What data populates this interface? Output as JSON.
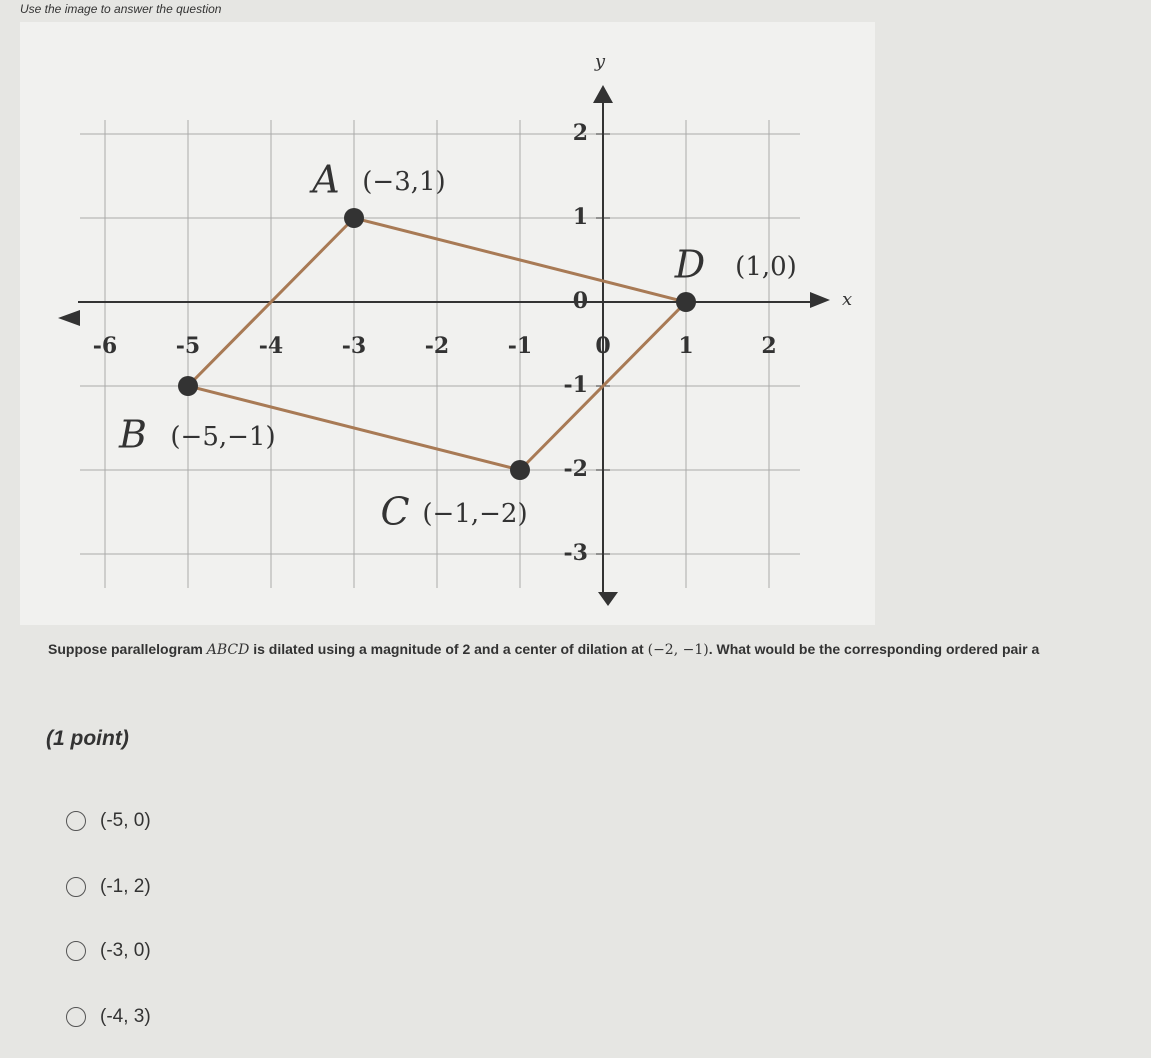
{
  "header": {
    "instruction": "Use the image to answer the question"
  },
  "figure": {
    "x_label": "x",
    "y_label": "y",
    "xticks": [
      -6,
      -5,
      -4,
      -3,
      -2,
      -1,
      0,
      1,
      2
    ],
    "yticks": [
      -3,
      -2,
      -1,
      0,
      1,
      2
    ],
    "points": [
      {
        "name": "A",
        "label": "(−3,1)",
        "x": -3,
        "y": 1
      },
      {
        "name": "B",
        "label": "(−5,−1)",
        "x": -5,
        "y": -1
      },
      {
        "name": "C",
        "label": "(−1,−2)",
        "x": -1,
        "y": -2
      },
      {
        "name": "D",
        "label": "(1,0)",
        "x": 1,
        "y": 0
      }
    ]
  },
  "question": {
    "parts": [
      "Suppose parallelogram ",
      "ABCD",
      " is dilated using a magnitude of 2 and a center of dilation at ",
      "(−2, −1)",
      ". What would be the corresponding ordered pair a"
    ],
    "points": "(1 point)",
    "options": [
      "(-5, 0)",
      "(-1, 2)",
      "(-3, 0)",
      "(-4, 3)"
    ]
  }
}
